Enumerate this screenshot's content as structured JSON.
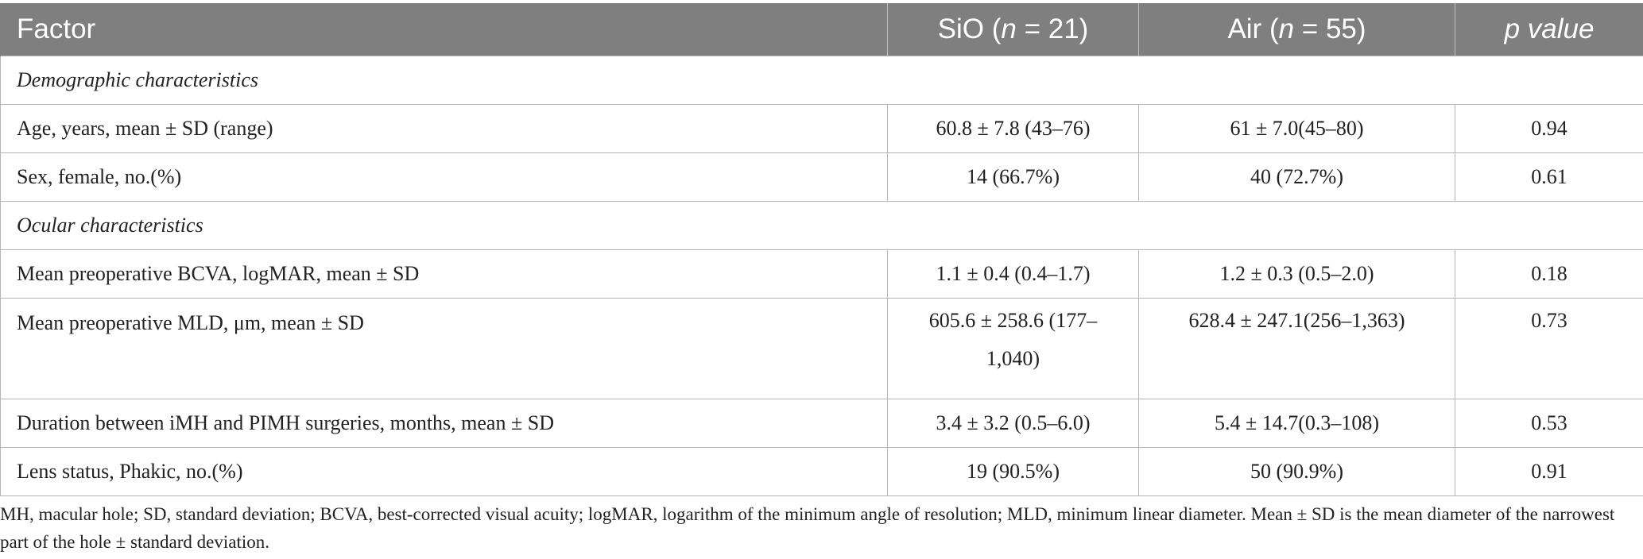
{
  "table": {
    "headers": {
      "factor": "Factor",
      "sio_prefix": "SiO (",
      "sio_n": "n",
      "sio_suffix": " = 21)",
      "air_prefix": "Air (",
      "air_n": "n",
      "air_suffix": " = 55)",
      "p_value": "p value"
    },
    "rows": [
      {
        "type": "section",
        "label": "Demographic characteristics"
      },
      {
        "type": "data",
        "factor": "Age, years, mean ± SD (range)",
        "sio": "60.8 ± 7.8 (43–76)",
        "air": "61 ± 7.0(45–80)",
        "p": "0.94"
      },
      {
        "type": "data",
        "factor": "Sex, female, no.(%)",
        "sio": "14 (66.7%)",
        "air": "40 (72.7%)",
        "p": "0.61"
      },
      {
        "type": "section",
        "label": "Ocular characteristics"
      },
      {
        "type": "data",
        "factor": "Mean preoperative BCVA, logMAR, mean ± SD",
        "sio": "1.1 ± 0.4 (0.4–1.7)",
        "air": "1.2 ± 0.3 (0.5–2.0)",
        "p": "0.18"
      },
      {
        "type": "data",
        "factor": "Mean preoperative MLD, μm, mean ± SD",
        "sio_line1": "605.6 ± 258.6 (177–",
        "sio_line2": "1,040)",
        "air": "628.4 ± 247.1(256–1,363)",
        "p": "0.73"
      },
      {
        "type": "data",
        "factor": "Duration between iMH and PIMH surgeries, months, mean ± SD",
        "sio": "3.4 ± 3.2 (0.5–6.0)",
        "air": "5.4 ± 14.7(0.3–108)",
        "p": "0.53"
      },
      {
        "type": "data",
        "factor": "Lens status, Phakic, no.(%)",
        "sio": "19 (90.5%)",
        "air": "50 (90.9%)",
        "p": "0.91"
      }
    ]
  },
  "footnote": "MH, macular hole; SD, standard deviation; BCVA, best-corrected visual acuity; logMAR, logarithm of the minimum angle of resolution; MLD, minimum linear diameter. Mean ± SD is the mean diameter of the narrowest part of the hole ± standard deviation.",
  "colors": {
    "header_bg": "#7f7f7f",
    "header_text": "#ffffff",
    "border": "#b5b5b5"
  }
}
